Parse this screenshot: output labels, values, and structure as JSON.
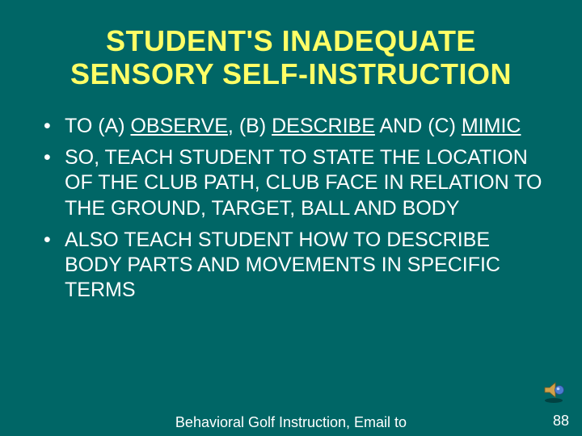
{
  "colors": {
    "background": "#006666",
    "title": "#ffff66",
    "body_text": "#ffffff",
    "footer_text": "#ffffff"
  },
  "typography": {
    "title_fontsize_pt": 28,
    "title_weight": "bold",
    "body_fontsize_pt": 19,
    "footer_fontsize_pt": 14,
    "font_family": "Arial"
  },
  "title": "STUDENT'S INADEQUATE SENSORY SELF-INSTRUCTION",
  "bullets": [
    {
      "parts": [
        {
          "t": "TO (A) "
        },
        {
          "t": "OBSERVE",
          "u": true
        },
        {
          "t": ", (B) "
        },
        {
          "t": "DESCRIBE",
          "u": true
        },
        {
          "t": " AND (C) "
        },
        {
          "t": "MIMIC",
          "u": true
        }
      ]
    },
    {
      "parts": [
        {
          "t": "SO, TEACH STUDENT TO STATE THE LOCATION OF THE CLUB PATH, CLUB FACE IN RELATION TO THE GROUND, TARGET, BALL AND BODY"
        }
      ]
    },
    {
      "parts": [
        {
          "t": "ALSO TEACH STUDENT HOW TO DESCRIBE BODY PARTS AND MOVEMENTS IN SPECIFIC TERMS"
        }
      ]
    }
  ],
  "footer": "Behavioral Golf Instruction,  Email to",
  "page_number": "88",
  "speaker_icon": {
    "speaker_fill": "#cfa14a",
    "bubble_fill": "#4a7bd1",
    "shadow": "rgba(0,0,0,0.4)"
  }
}
